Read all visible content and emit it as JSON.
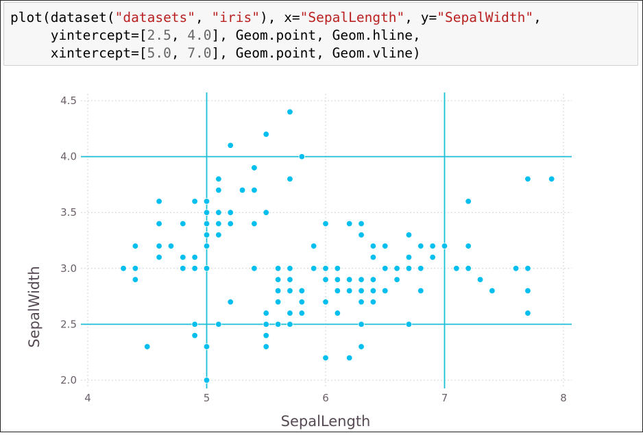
{
  "code": {
    "lines": [
      [
        {
          "t": "plain",
          "v": "plot(dataset("
        },
        {
          "t": "str",
          "v": "\"datasets\""
        },
        {
          "t": "plain",
          "v": ", "
        },
        {
          "t": "str",
          "v": "\"iris\""
        },
        {
          "t": "plain",
          "v": "), x="
        },
        {
          "t": "str",
          "v": "\"SepalLength\""
        },
        {
          "t": "plain",
          "v": ", y="
        },
        {
          "t": "str",
          "v": "\"SepalWidth\""
        },
        {
          "t": "plain",
          "v": ","
        }
      ],
      [
        {
          "t": "plain",
          "v": "     yintercept=["
        },
        {
          "t": "num",
          "v": "2.5"
        },
        {
          "t": "plain",
          "v": ", "
        },
        {
          "t": "num",
          "v": "4.0"
        },
        {
          "t": "plain",
          "v": "], Geom.point, Geom.hline,"
        }
      ],
      [
        {
          "t": "plain",
          "v": "     xintercept=["
        },
        {
          "t": "num",
          "v": "5.0"
        },
        {
          "t": "plain",
          "v": ", "
        },
        {
          "t": "num",
          "v": "7.0"
        },
        {
          "t": "plain",
          "v": "], Geom.point, Geom.vline)"
        }
      ]
    ]
  },
  "colors": {
    "point": "#00bfef",
    "line": "#18bfd6",
    "grid": "#d0d0d0",
    "tick": "#6c606b",
    "label": "#564a55"
  },
  "chart_data": {
    "type": "scatter",
    "title": "",
    "xlabel": "SepalLength",
    "ylabel": "SepalWidth",
    "xlim": [
      4,
      8
    ],
    "ylim": [
      2.0,
      4.5
    ],
    "xticks": [
      4,
      5,
      6,
      7,
      8
    ],
    "xtick_labels": [
      "4",
      "5",
      "6",
      "7",
      "8"
    ],
    "yticks": [
      2.0,
      2.5,
      3.0,
      3.5,
      4.0,
      4.5
    ],
    "ytick_labels": [
      "2.0",
      "2.5",
      "3.0",
      "3.5",
      "4.0",
      "4.5"
    ],
    "grid": true,
    "hlines": [
      2.5,
      4.0
    ],
    "vlines": [
      5.0,
      7.0
    ],
    "points": [
      [
        5.1,
        3.5
      ],
      [
        4.9,
        3.0
      ],
      [
        4.7,
        3.2
      ],
      [
        4.6,
        3.1
      ],
      [
        5.0,
        3.6
      ],
      [
        5.4,
        3.9
      ],
      [
        4.6,
        3.4
      ],
      [
        5.0,
        3.4
      ],
      [
        4.4,
        2.9
      ],
      [
        4.9,
        3.1
      ],
      [
        5.4,
        3.7
      ],
      [
        4.8,
        3.4
      ],
      [
        4.8,
        3.0
      ],
      [
        4.3,
        3.0
      ],
      [
        5.8,
        4.0
      ],
      [
        5.7,
        4.4
      ],
      [
        5.4,
        3.9
      ],
      [
        5.1,
        3.5
      ],
      [
        5.7,
        3.8
      ],
      [
        5.1,
        3.8
      ],
      [
        5.4,
        3.4
      ],
      [
        5.1,
        3.7
      ],
      [
        4.6,
        3.6
      ],
      [
        5.1,
        3.3
      ],
      [
        4.8,
        3.4
      ],
      [
        5.0,
        3.0
      ],
      [
        5.0,
        3.4
      ],
      [
        5.2,
        3.5
      ],
      [
        5.2,
        3.4
      ],
      [
        4.7,
        3.2
      ],
      [
        4.8,
        3.1
      ],
      [
        5.4,
        3.4
      ],
      [
        5.2,
        4.1
      ],
      [
        5.5,
        4.2
      ],
      [
        4.9,
        3.1
      ],
      [
        5.0,
        3.2
      ],
      [
        5.5,
        3.5
      ],
      [
        4.9,
        3.6
      ],
      [
        4.4,
        3.0
      ],
      [
        5.1,
        3.4
      ],
      [
        5.0,
        3.5
      ],
      [
        4.5,
        2.3
      ],
      [
        4.4,
        3.2
      ],
      [
        5.0,
        3.5
      ],
      [
        5.1,
        3.8
      ],
      [
        4.8,
        3.0
      ],
      [
        5.1,
        3.8
      ],
      [
        4.6,
        3.2
      ],
      [
        5.3,
        3.7
      ],
      [
        5.0,
        3.3
      ],
      [
        7.0,
        3.2
      ],
      [
        6.4,
        3.2
      ],
      [
        6.9,
        3.1
      ],
      [
        5.5,
        2.3
      ],
      [
        6.5,
        2.8
      ],
      [
        5.7,
        2.8
      ],
      [
        6.3,
        3.3
      ],
      [
        4.9,
        2.4
      ],
      [
        6.6,
        2.9
      ],
      [
        5.2,
        2.7
      ],
      [
        5.0,
        2.0
      ],
      [
        5.9,
        3.0
      ],
      [
        6.0,
        2.2
      ],
      [
        6.1,
        2.9
      ],
      [
        5.6,
        2.9
      ],
      [
        6.7,
        3.1
      ],
      [
        5.6,
        3.0
      ],
      [
        5.8,
        2.7
      ],
      [
        6.2,
        2.2
      ],
      [
        5.6,
        2.5
      ],
      [
        5.9,
        3.2
      ],
      [
        6.1,
        2.8
      ],
      [
        6.3,
        2.5
      ],
      [
        6.1,
        2.8
      ],
      [
        6.4,
        2.9
      ],
      [
        6.6,
        3.0
      ],
      [
        6.8,
        2.8
      ],
      [
        6.7,
        3.0
      ],
      [
        6.0,
        2.9
      ],
      [
        5.7,
        2.6
      ],
      [
        5.5,
        2.4
      ],
      [
        5.5,
        2.4
      ],
      [
        5.8,
        2.7
      ],
      [
        6.0,
        2.7
      ],
      [
        5.4,
        3.0
      ],
      [
        6.0,
        3.4
      ],
      [
        6.7,
        3.1
      ],
      [
        6.3,
        2.3
      ],
      [
        5.6,
        3.0
      ],
      [
        5.5,
        2.5
      ],
      [
        5.5,
        2.6
      ],
      [
        6.1,
        3.0
      ],
      [
        5.8,
        2.6
      ],
      [
        5.0,
        2.3
      ],
      [
        5.6,
        2.7
      ],
      [
        5.7,
        3.0
      ],
      [
        5.7,
        2.9
      ],
      [
        6.2,
        2.9
      ],
      [
        5.1,
        2.5
      ],
      [
        5.7,
        2.8
      ],
      [
        6.3,
        3.3
      ],
      [
        5.8,
        2.7
      ],
      [
        7.1,
        3.0
      ],
      [
        6.3,
        2.9
      ],
      [
        6.5,
        3.0
      ],
      [
        7.6,
        3.0
      ],
      [
        4.9,
        2.5
      ],
      [
        7.3,
        2.9
      ],
      [
        6.7,
        2.5
      ],
      [
        7.2,
        3.6
      ],
      [
        6.5,
        3.2
      ],
      [
        6.4,
        2.7
      ],
      [
        6.8,
        3.0
      ],
      [
        5.7,
        2.5
      ],
      [
        5.8,
        2.8
      ],
      [
        6.4,
        3.2
      ],
      [
        6.5,
        3.0
      ],
      [
        7.7,
        3.8
      ],
      [
        7.7,
        2.6
      ],
      [
        6.0,
        2.2
      ],
      [
        6.9,
        3.2
      ],
      [
        5.6,
        2.8
      ],
      [
        7.7,
        2.8
      ],
      [
        6.3,
        2.7
      ],
      [
        6.7,
        3.3
      ],
      [
        7.2,
        3.2
      ],
      [
        6.2,
        2.8
      ],
      [
        6.1,
        3.0
      ],
      [
        6.4,
        2.8
      ],
      [
        7.2,
        3.0
      ],
      [
        7.4,
        2.8
      ],
      [
        7.9,
        3.8
      ],
      [
        6.4,
        2.8
      ],
      [
        6.3,
        2.8
      ],
      [
        6.1,
        2.6
      ],
      [
        7.7,
        3.0
      ],
      [
        6.3,
        3.4
      ],
      [
        6.4,
        3.1
      ],
      [
        6.0,
        3.0
      ],
      [
        6.9,
        3.1
      ],
      [
        6.7,
        3.1
      ],
      [
        6.9,
        3.1
      ],
      [
        5.8,
        2.7
      ],
      [
        6.8,
        3.2
      ],
      [
        6.7,
        3.3
      ],
      [
        6.7,
        3.0
      ],
      [
        6.3,
        2.5
      ],
      [
        6.5,
        3.0
      ],
      [
        6.2,
        3.4
      ],
      [
        5.9,
        3.0
      ]
    ]
  }
}
